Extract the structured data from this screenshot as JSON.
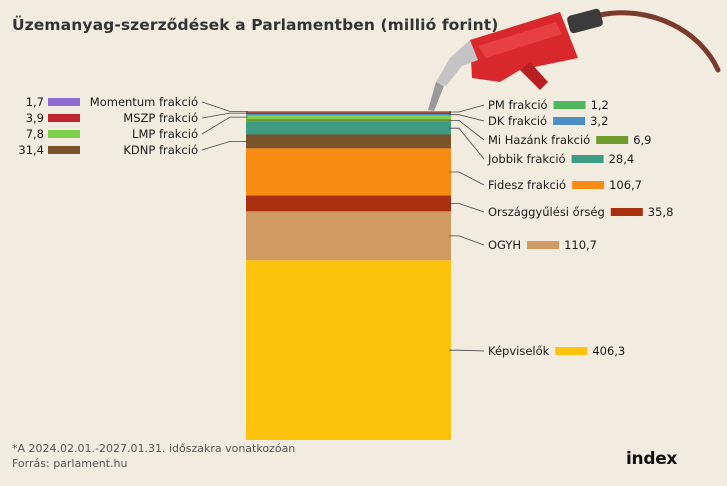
{
  "title": "Üzemanyag-szerződések a Parlamentben (millió forint)",
  "footnote": "*A 2024.02.01.-2027.01.31. időszakra vonatkozóan",
  "source": "Forrás: parlament.hu",
  "logo_text": "index",
  "chart_data": {
    "type": "bar",
    "stacked": true,
    "unit": "millió forint",
    "series": [
      {
        "name": "Momentum frakció",
        "value": 1.7,
        "label": "1,7",
        "color": "#8e6bd1",
        "side": "left"
      },
      {
        "name": "PM frakció",
        "value": 1.2,
        "label": "1,2",
        "color": "#4fb65d",
        "side": "right"
      },
      {
        "name": "MSZP frakció",
        "value": 3.9,
        "label": "3,9",
        "color": "#c0262b",
        "side": "left"
      },
      {
        "name": "DK frakció",
        "value": 3.2,
        "label": "3,2",
        "color": "#4a8ec4",
        "side": "right"
      },
      {
        "name": "LMP frakció",
        "value": 7.8,
        "label": "7,8",
        "color": "#7ed04c",
        "side": "left"
      },
      {
        "name": "Mi Hazánk frakció",
        "value": 6.9,
        "label": "6,9",
        "color": "#6f9a2e",
        "side": "right"
      },
      {
        "name": "Jobbik frakció",
        "value": 28.4,
        "label": "28,4",
        "color": "#3f9b83",
        "side": "right"
      },
      {
        "name": "KDNP frakció",
        "value": 31.4,
        "label": "31,4",
        "color": "#7a5428",
        "side": "left"
      },
      {
        "name": "Fidesz frakció",
        "value": 106.7,
        "label": "106,7",
        "color": "#f88b12",
        "side": "right"
      },
      {
        "name": "Országgyűlési őrség",
        "value": 35.8,
        "label": "35,8",
        "color": "#a8300f",
        "side": "right"
      },
      {
        "name": "OGYH",
        "value": 110.7,
        "label": "110,7",
        "color": "#cf9b62",
        "side": "right"
      },
      {
        "name": "Képviselők",
        "value": 406.3,
        "label": "406,3",
        "color": "#fcc20c",
        "side": "right"
      }
    ]
  }
}
